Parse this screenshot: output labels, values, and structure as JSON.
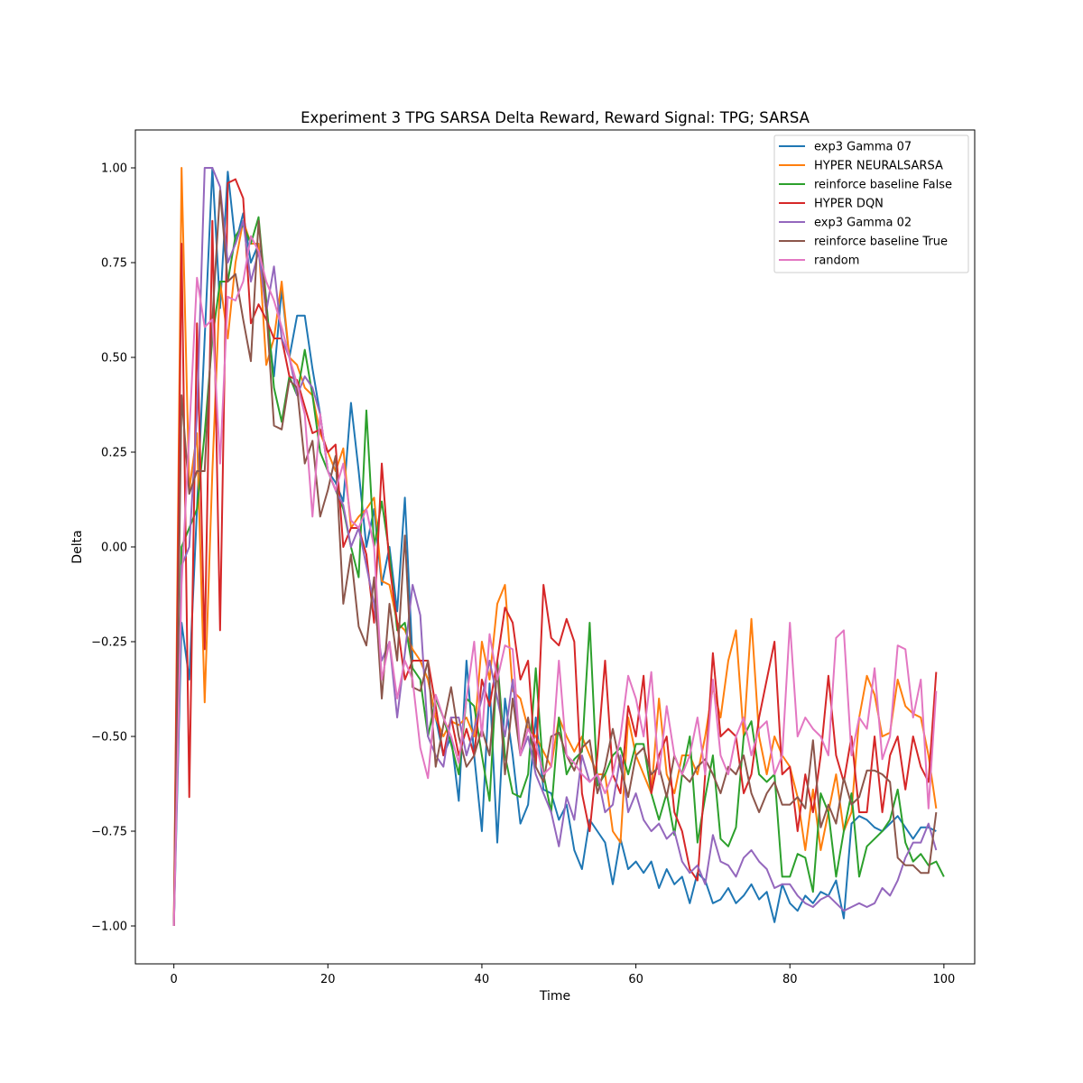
{
  "chart_data": {
    "type": "line",
    "title": "Experiment 3 TPG SARSA Delta Reward,  Reward Signal: TPG; SARSA",
    "xlabel": "Time",
    "ylabel": "Delta",
    "xlim": [
      -5,
      104
    ],
    "ylim": [
      -1.1,
      1.1
    ],
    "xticks": [
      0,
      20,
      40,
      60,
      80,
      100
    ],
    "xtick_labels": [
      "0",
      "20",
      "40",
      "60",
      "80",
      "100"
    ],
    "yticks": [
      1.0,
      0.75,
      0.5,
      0.25,
      0.0,
      -0.25,
      -0.5,
      -0.75,
      -1.0
    ],
    "ytick_labels": [
      "1.00",
      "0.75",
      "0.50",
      "0.25",
      "0.00",
      "−0.25",
      "−0.50",
      "−0.75",
      "−1.00"
    ],
    "grid": false,
    "legend_position": "top-right",
    "series": [
      {
        "name": "exp3 Gamma 07",
        "color": "#1f77b4",
        "values": [
          -1.0,
          -0.2,
          -0.35,
          0.1,
          0.55,
          1.0,
          0.63,
          0.99,
          0.8,
          0.88,
          0.75,
          0.8,
          0.62,
          0.45,
          0.68,
          0.5,
          0.61,
          0.61,
          0.47,
          0.35,
          0.2,
          0.17,
          0.12,
          0.38,
          0.2,
          0.0,
          0.1,
          -0.1,
          0.0,
          -0.17,
          0.13,
          -0.3,
          -0.3,
          -0.35,
          -0.45,
          -0.55,
          -0.5,
          -0.67,
          -0.3,
          -0.55,
          -0.75,
          -0.36,
          -0.78,
          -0.4,
          -0.55,
          -0.73,
          -0.68,
          -0.45,
          -0.64,
          -0.65,
          -0.72,
          -0.68,
          -0.8,
          -0.85,
          -0.72,
          -0.75,
          -0.78,
          -0.89,
          -0.77,
          -0.85,
          -0.83,
          -0.86,
          -0.83,
          -0.9,
          -0.85,
          -0.89,
          -0.87,
          -0.94,
          -0.86,
          -0.88,
          -0.94,
          -0.93,
          -0.9,
          -0.94,
          -0.92,
          -0.89,
          -0.93,
          -0.91,
          -0.99,
          -0.89,
          -0.94,
          -0.96,
          -0.92,
          -0.94,
          -0.91,
          -0.92,
          -0.88,
          -0.98,
          -0.73,
          -0.71,
          -0.72,
          -0.74,
          -0.75,
          -0.73,
          -0.71,
          -0.74,
          -0.77,
          -0.74,
          -0.74,
          -0.75
        ]
      },
      {
        "name": "HYPER NEURALSARSA",
        "color": "#ff7f0e",
        "values": [
          -1.0,
          1.0,
          0.15,
          0.3,
          -0.41,
          0.2,
          0.7,
          0.55,
          0.75,
          0.86,
          0.8,
          0.8,
          0.48,
          0.55,
          0.7,
          0.5,
          0.48,
          0.42,
          0.4,
          0.3,
          0.25,
          0.2,
          0.26,
          0.05,
          0.08,
          0.1,
          0.13,
          -0.09,
          -0.1,
          -0.2,
          -0.22,
          -0.27,
          -0.3,
          -0.35,
          -0.45,
          -0.5,
          -0.46,
          -0.47,
          -0.45,
          -0.5,
          -0.25,
          -0.35,
          -0.15,
          -0.1,
          -0.38,
          -0.4,
          -0.48,
          -0.5,
          -0.54,
          -0.58,
          -0.45,
          -0.5,
          -0.54,
          -0.5,
          -0.55,
          -0.6,
          -0.6,
          -0.75,
          -0.78,
          -0.45,
          -0.55,
          -0.6,
          -0.65,
          -0.4,
          -0.6,
          -0.65,
          -0.55,
          -0.55,
          -0.6,
          -0.5,
          -0.37,
          -0.45,
          -0.3,
          -0.22,
          -0.5,
          -0.19,
          -0.5,
          -0.6,
          -0.5,
          -0.55,
          -0.58,
          -0.66,
          -0.8,
          -0.64,
          -0.8,
          -0.7,
          -0.6,
          -0.75,
          -0.7,
          -0.45,
          -0.34,
          -0.39,
          -0.5,
          -0.49,
          -0.35,
          -0.42,
          -0.44,
          -0.45,
          -0.55,
          -0.69
        ]
      },
      {
        "name": "reinforce baseline False",
        "color": "#2ca02c",
        "values": [
          -1.0,
          0.0,
          0.05,
          0.1,
          0.3,
          0.55,
          0.7,
          0.7,
          0.82,
          0.85,
          0.8,
          0.87,
          0.65,
          0.42,
          0.33,
          0.45,
          0.4,
          0.52,
          0.4,
          0.25,
          0.2,
          0.15,
          0.1,
          0.0,
          -0.08,
          0.36,
          0.0,
          0.12,
          -0.02,
          -0.22,
          -0.2,
          -0.32,
          -0.35,
          -0.5,
          -0.4,
          -0.45,
          -0.52,
          -0.6,
          -0.4,
          -0.42,
          -0.55,
          -0.67,
          -0.3,
          -0.55,
          -0.65,
          -0.66,
          -0.6,
          -0.32,
          -0.6,
          -0.7,
          -0.45,
          -0.6,
          -0.56,
          -0.54,
          -0.2,
          -0.63,
          -0.6,
          -0.55,
          -0.53,
          -0.6,
          -0.52,
          -0.52,
          -0.65,
          -0.72,
          -0.65,
          -0.76,
          -0.6,
          -0.5,
          -0.78,
          -0.66,
          -0.55,
          -0.77,
          -0.79,
          -0.74,
          -0.5,
          -0.46,
          -0.6,
          -0.62,
          -0.6,
          -0.87,
          -0.87,
          -0.81,
          -0.82,
          -0.91,
          -0.65,
          -0.7,
          -0.87,
          -0.75,
          -0.65,
          -0.87,
          -0.79,
          -0.77,
          -0.75,
          -0.72,
          -0.64,
          -0.78,
          -0.83,
          -0.81,
          -0.84,
          -0.83,
          -0.87
        ]
      },
      {
        "name": "HYPER DQN",
        "color": "#d62728",
        "values": [
          -1.0,
          0.8,
          -0.66,
          0.59,
          -0.27,
          0.86,
          -0.22,
          0.96,
          0.97,
          0.92,
          0.59,
          0.64,
          0.6,
          0.55,
          0.55,
          0.45,
          0.44,
          0.37,
          0.3,
          0.31,
          0.25,
          0.27,
          0.0,
          0.05,
          0.05,
          -0.02,
          -0.2,
          0.22,
          -0.05,
          -0.2,
          -0.35,
          -0.3,
          -0.3,
          -0.3,
          -0.42,
          -0.55,
          -0.45,
          -0.55,
          -0.48,
          -0.55,
          -0.35,
          -0.42,
          -0.3,
          -0.16,
          -0.2,
          -0.35,
          -0.3,
          -0.58,
          -0.1,
          -0.24,
          -0.26,
          -0.19,
          -0.25,
          -0.65,
          -0.75,
          -0.55,
          -0.3,
          -0.6,
          -0.65,
          -0.42,
          -0.5,
          -0.34,
          -0.65,
          -0.55,
          -0.5,
          -0.7,
          -0.75,
          -0.85,
          -0.88,
          -0.6,
          -0.28,
          -0.5,
          -0.48,
          -0.5,
          -0.65,
          -0.6,
          -0.45,
          -0.35,
          -0.25,
          -0.6,
          -0.58,
          -0.75,
          -0.6,
          -0.7,
          -0.55,
          -0.34,
          -0.55,
          -0.62,
          -0.5,
          -0.7,
          -0.7,
          -0.5,
          -0.7,
          -0.55,
          -0.5,
          -0.64,
          -0.5,
          -0.58,
          -0.62,
          -0.33
        ]
      },
      {
        "name": "exp3 Gamma 02",
        "color": "#9467bd",
        "values": [
          -1.0,
          -0.05,
          0.0,
          0.35,
          1.0,
          1.0,
          0.95,
          0.75,
          0.8,
          0.86,
          0.7,
          0.78,
          0.62,
          0.74,
          0.55,
          0.5,
          0.4,
          0.45,
          0.42,
          0.35,
          0.2,
          0.15,
          0.11,
          0.0,
          0.05,
          -0.05,
          -0.15,
          -0.3,
          -0.25,
          -0.45,
          -0.28,
          -0.1,
          -0.18,
          -0.5,
          -0.55,
          -0.58,
          -0.45,
          -0.45,
          -0.55,
          -0.48,
          -0.4,
          -0.3,
          -0.4,
          -0.5,
          -0.35,
          -0.55,
          -0.5,
          -0.6,
          -0.65,
          -0.7,
          -0.79,
          -0.66,
          -0.72,
          -0.55,
          -0.62,
          -0.6,
          -0.7,
          -0.68,
          -0.55,
          -0.7,
          -0.65,
          -0.72,
          -0.75,
          -0.73,
          -0.77,
          -0.75,
          -0.83,
          -0.86,
          -0.84,
          -0.89,
          -0.76,
          -0.83,
          -0.84,
          -0.87,
          -0.82,
          -0.8,
          -0.83,
          -0.85,
          -0.9,
          -0.89,
          -0.89,
          -0.92,
          -0.94,
          -0.95,
          -0.93,
          -0.92,
          -0.94,
          -0.96,
          -0.95,
          -0.94,
          -0.95,
          -0.94,
          -0.9,
          -0.92,
          -0.88,
          -0.82,
          -0.78,
          -0.78,
          -0.73,
          -0.8
        ]
      },
      {
        "name": "reinforce baseline True",
        "color": "#8c564b",
        "values": [
          -1.0,
          0.4,
          0.14,
          0.2,
          0.2,
          0.6,
          0.94,
          0.7,
          0.72,
          0.6,
          0.49,
          0.86,
          0.63,
          0.32,
          0.31,
          0.44,
          0.42,
          0.22,
          0.28,
          0.08,
          0.15,
          0.24,
          -0.15,
          -0.02,
          -0.21,
          -0.26,
          -0.08,
          -0.4,
          -0.15,
          -0.3,
          0.03,
          -0.37,
          -0.38,
          -0.3,
          -0.58,
          -0.47,
          -0.37,
          -0.5,
          -0.58,
          -0.55,
          -0.48,
          -0.55,
          -0.32,
          -0.6,
          -0.4,
          -0.55,
          -0.45,
          -0.58,
          -0.62,
          -0.5,
          -0.49,
          -0.55,
          -0.59,
          -0.53,
          -0.51,
          -0.65,
          -0.58,
          -0.48,
          -0.58,
          -0.66,
          -0.55,
          -0.53,
          -0.6,
          -0.58,
          -0.66,
          -0.55,
          -0.6,
          -0.62,
          -0.58,
          -0.56,
          -0.6,
          -0.65,
          -0.58,
          -0.6,
          -0.55,
          -0.65,
          -0.7,
          -0.65,
          -0.62,
          -0.68,
          -0.68,
          -0.66,
          -0.69,
          -0.51,
          -0.74,
          -0.68,
          -0.73,
          -0.61,
          -0.68,
          -0.66,
          -0.59,
          -0.59,
          -0.6,
          -0.62,
          -0.82,
          -0.84,
          -0.84,
          -0.86,
          -0.86,
          -0.7
        ]
      },
      {
        "name": "random",
        "color": "#e377c2",
        "values": [
          -1.0,
          -0.1,
          0.3,
          0.71,
          0.58,
          0.6,
          0.22,
          0.66,
          0.65,
          0.7,
          0.82,
          0.78,
          0.7,
          0.65,
          0.58,
          0.5,
          0.43,
          0.35,
          0.08,
          0.35,
          0.2,
          0.15,
          0.22,
          0.07,
          0.05,
          0.1,
          0.0,
          -0.35,
          -0.25,
          -0.4,
          -0.3,
          -0.35,
          -0.53,
          -0.61,
          -0.39,
          -0.45,
          -0.5,
          -0.57,
          -0.4,
          -0.25,
          -0.5,
          -0.23,
          -0.35,
          -0.26,
          -0.27,
          -0.55,
          -0.48,
          -0.52,
          -0.6,
          -0.58,
          -0.3,
          -0.55,
          -0.57,
          -0.6,
          -0.62,
          -0.6,
          -0.65,
          -0.6,
          -0.5,
          -0.34,
          -0.4,
          -0.5,
          -0.33,
          -0.6,
          -0.42,
          -0.55,
          -0.6,
          -0.55,
          -0.45,
          -0.6,
          -0.35,
          -0.55,
          -0.6,
          -0.5,
          -0.45,
          -0.55,
          -0.48,
          -0.46,
          -0.6,
          -0.55,
          -0.2,
          -0.5,
          -0.45,
          -0.48,
          -0.5,
          -0.55,
          -0.24,
          -0.22,
          -0.55,
          -0.45,
          -0.48,
          -0.32,
          -0.56,
          -0.5,
          -0.26,
          -0.27,
          -0.45,
          -0.35,
          -0.69,
          -0.38
        ]
      }
    ]
  }
}
